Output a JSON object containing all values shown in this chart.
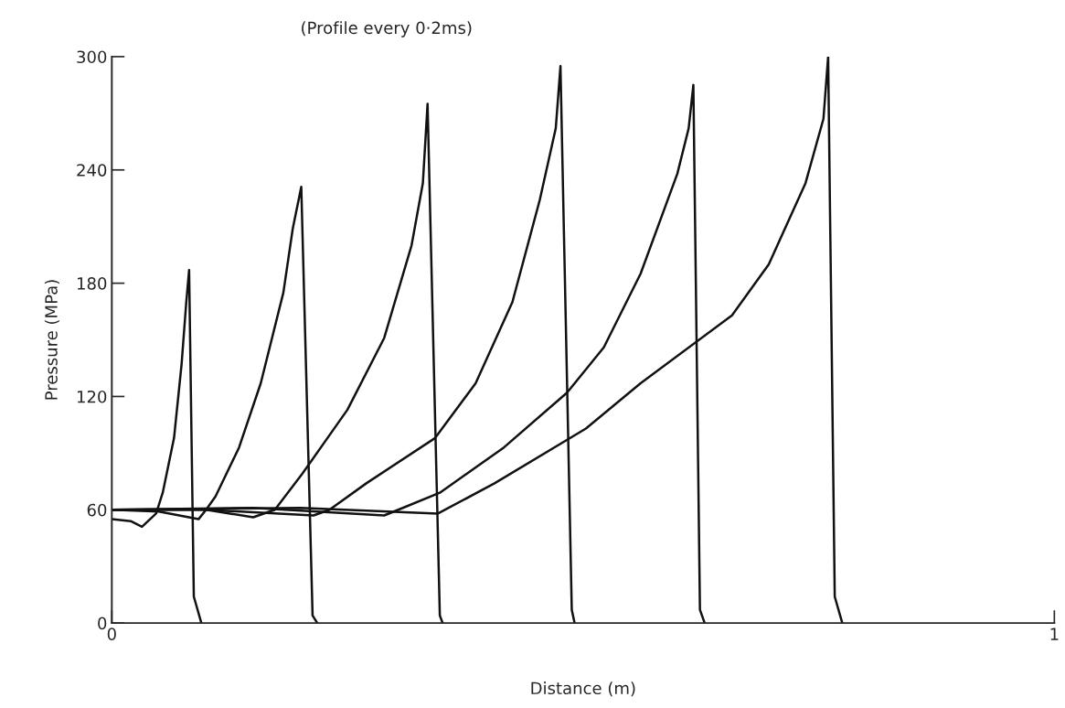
{
  "chart_data": {
    "type": "line",
    "title": "(Profile every 0·2ms)",
    "xlabel": "Distance (m)",
    "ylabel": "Pressure (MPa)",
    "xlim": [
      0,
      1
    ],
    "xticks": [
      0,
      1
    ],
    "ylim": [
      0,
      300
    ],
    "yticks": [
      0,
      60,
      120,
      180,
      240,
      300
    ],
    "grid": false,
    "marker": "none",
    "line_style": "solid",
    "series": [
      {
        "color": "#111111",
        "x": [
          0,
          0.02,
          0.032,
          0.047,
          0.054,
          0.066,
          0.074,
          0.079,
          0.082,
          0.087,
          0.095
        ],
        "values": [
          55,
          54,
          51,
          58,
          69,
          98,
          137,
          170,
          187,
          14,
          0
        ]
      },
      {
        "color": "#111111",
        "x": [
          0,
          0.05,
          0.092,
          0.1,
          0.11,
          0.135,
          0.158,
          0.182,
          0.192,
          0.201,
          0.213,
          0.218
        ],
        "values": [
          60,
          59,
          55,
          60,
          67,
          93,
          127,
          175,
          209,
          231,
          4,
          0
        ]
      },
      {
        "color": "#111111",
        "x": [
          0,
          0.1,
          0.15,
          0.173,
          0.202,
          0.25,
          0.289,
          0.318,
          0.33,
          0.335,
          0.348,
          0.351
        ],
        "values": [
          60,
          60,
          56,
          60,
          79,
          113,
          151,
          200,
          233,
          275,
          4,
          0
        ]
      },
      {
        "color": "#111111",
        "x": [
          0,
          0.1,
          0.214,
          0.231,
          0.27,
          0.343,
          0.386,
          0.425,
          0.454,
          0.471,
          0.476,
          0.488,
          0.491
        ],
        "values": [
          60,
          60,
          57,
          60,
          74,
          98,
          127,
          170,
          224,
          262,
          295,
          7,
          0
        ]
      },
      {
        "color": "#111111",
        "x": [
          0,
          0.15,
          0.289,
          0.304,
          0.348,
          0.416,
          0.483,
          0.522,
          0.561,
          0.6,
          0.612,
          0.617,
          0.624,
          0.629
        ],
        "values": [
          60,
          61,
          57,
          60,
          69,
          93,
          122,
          146,
          185,
          238,
          262,
          285,
          7,
          0
        ]
      },
      {
        "color": "#111111",
        "x": [
          0,
          0.2,
          0.346,
          0.406,
          0.503,
          0.561,
          0.658,
          0.697,
          0.736,
          0.755,
          0.76,
          0.767,
          0.775
        ],
        "values": [
          60,
          61,
          58,
          74,
          103,
          127,
          163,
          190,
          233,
          267,
          300,
          14,
          0
        ]
      }
    ]
  }
}
